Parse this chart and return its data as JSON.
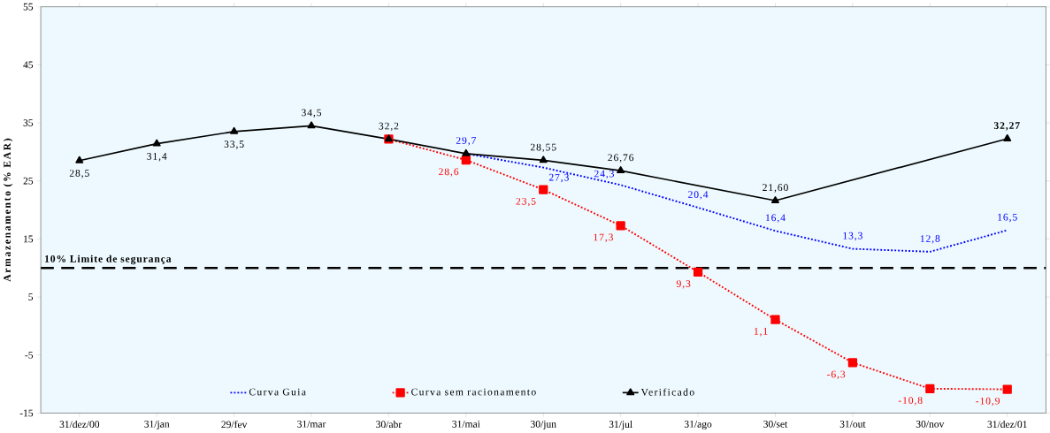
{
  "chart_data": {
    "type": "line",
    "ylabel": "Armazenamento (% EAR)",
    "categories": [
      "31/dez/00",
      "31/jan",
      "29/fev",
      "31/mar",
      "30/abr",
      "31/mai",
      "30/jun",
      "31/jul",
      "31/ago",
      "30/set",
      "31/out",
      "30/nov",
      "31/dez/01"
    ],
    "series": [
      {
        "name": "Curva Guia",
        "color": "#0000ff",
        "line_style": "dotted",
        "marker": "none",
        "values": [
          null,
          null,
          null,
          null,
          null,
          29.7,
          27.3,
          24.3,
          20.4,
          16.4,
          13.3,
          12.8,
          16.5
        ],
        "value_labels": [
          null,
          null,
          null,
          null,
          null,
          "29,7",
          "27,3",
          "24,3",
          "20,4",
          "16,4",
          "13,3",
          "12,8",
          "16,5"
        ]
      },
      {
        "name": "Curva sem racionamento",
        "color": "#ff0000",
        "line_style": "dotted",
        "marker": "square",
        "values": [
          null,
          null,
          null,
          null,
          32.2,
          28.6,
          23.5,
          17.3,
          9.3,
          1.1,
          -6.3,
          -10.8,
          -10.9
        ],
        "value_labels": [
          null,
          null,
          null,
          null,
          null,
          "28,6",
          "23,5",
          "17,3",
          "9,3",
          "1,1",
          "-6,3",
          "-10,8",
          "-10,9"
        ]
      },
      {
        "name": "Verificado",
        "color": "#000000",
        "line_style": "solid",
        "marker": "triangle",
        "values": [
          28.5,
          31.4,
          33.5,
          34.5,
          32.2,
          29.7,
          28.55,
          26.76,
          null,
          21.6,
          null,
          null,
          32.27
        ],
        "value_labels": [
          "28,5",
          "31,4",
          "33,5",
          "34,5",
          "32,2",
          null,
          "28,55",
          "26,76",
          null,
          "21,60",
          null,
          null,
          "**32,27**"
        ]
      }
    ],
    "ylim": [
      -15,
      55
    ],
    "yticks": [
      -15,
      -5,
      5,
      15,
      25,
      35,
      45,
      55
    ],
    "ref_lines": [
      {
        "axis": "y",
        "value": 10,
        "label": "10% Limite de segurança",
        "color": "#000000",
        "line_style": "dashed"
      }
    ],
    "legend": "bottom",
    "grid": false
  }
}
